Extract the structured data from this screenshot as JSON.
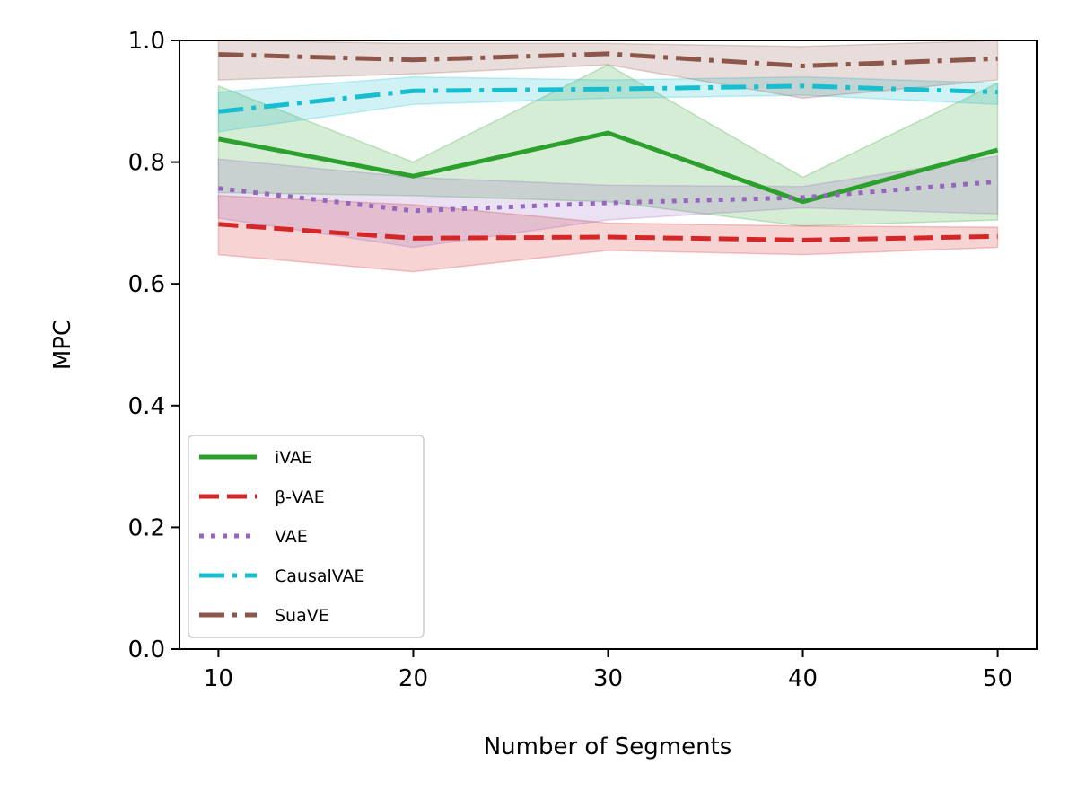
{
  "chart_data": {
    "type": "line",
    "title": "",
    "xlabel": "Number of Segments",
    "ylabel": "MPC",
    "x": [
      10,
      20,
      30,
      40,
      50
    ],
    "xlim": [
      8,
      52
    ],
    "ylim": [
      0,
      1
    ],
    "xticks": [
      "10",
      "20",
      "30",
      "40",
      "50"
    ],
    "yticks": [
      "0.0",
      "0.2",
      "0.4",
      "0.6",
      "0.8",
      "1.0"
    ],
    "grid": false,
    "legend_position": "lower-left",
    "series": [
      {
        "name": "iVAE",
        "color": "#2ca02c",
        "dash": "solid",
        "values": [
          0.838,
          0.777,
          0.848,
          0.735,
          0.82
        ],
        "upper": [
          0.925,
          0.8,
          0.96,
          0.775,
          0.93
        ],
        "lower": [
          0.75,
          0.745,
          0.735,
          0.695,
          0.705
        ]
      },
      {
        "name": "β-VAE",
        "color": "#d62728",
        "dash": "dashed",
        "values": [
          0.698,
          0.675,
          0.677,
          0.672,
          0.678
        ],
        "upper": [
          0.745,
          0.73,
          0.7,
          0.695,
          0.693
        ],
        "lower": [
          0.648,
          0.62,
          0.655,
          0.648,
          0.66
        ]
      },
      {
        "name": "VAE",
        "color": "#9467bd",
        "dash": "dotted",
        "values": [
          0.757,
          0.72,
          0.733,
          0.742,
          0.768
        ],
        "upper": [
          0.805,
          0.775,
          0.762,
          0.76,
          0.81
        ],
        "lower": [
          0.708,
          0.66,
          0.705,
          0.725,
          0.715
        ]
      },
      {
        "name": "CausalVAE",
        "color": "#17becf",
        "dash": "dashdot",
        "values": [
          0.883,
          0.917,
          0.92,
          0.925,
          0.915
        ],
        "upper": [
          0.915,
          0.94,
          0.935,
          0.94,
          0.93
        ],
        "lower": [
          0.85,
          0.895,
          0.905,
          0.91,
          0.895
        ]
      },
      {
        "name": "SuaVE",
        "color": "#8c564b",
        "dash": "dashdot",
        "values": [
          0.977,
          0.968,
          0.978,
          0.958,
          0.97
        ],
        "upper": [
          1.0,
          0.995,
          0.995,
          0.99,
          1.0
        ],
        "lower": [
          0.935,
          0.945,
          0.96,
          0.905,
          0.935
        ]
      }
    ]
  }
}
